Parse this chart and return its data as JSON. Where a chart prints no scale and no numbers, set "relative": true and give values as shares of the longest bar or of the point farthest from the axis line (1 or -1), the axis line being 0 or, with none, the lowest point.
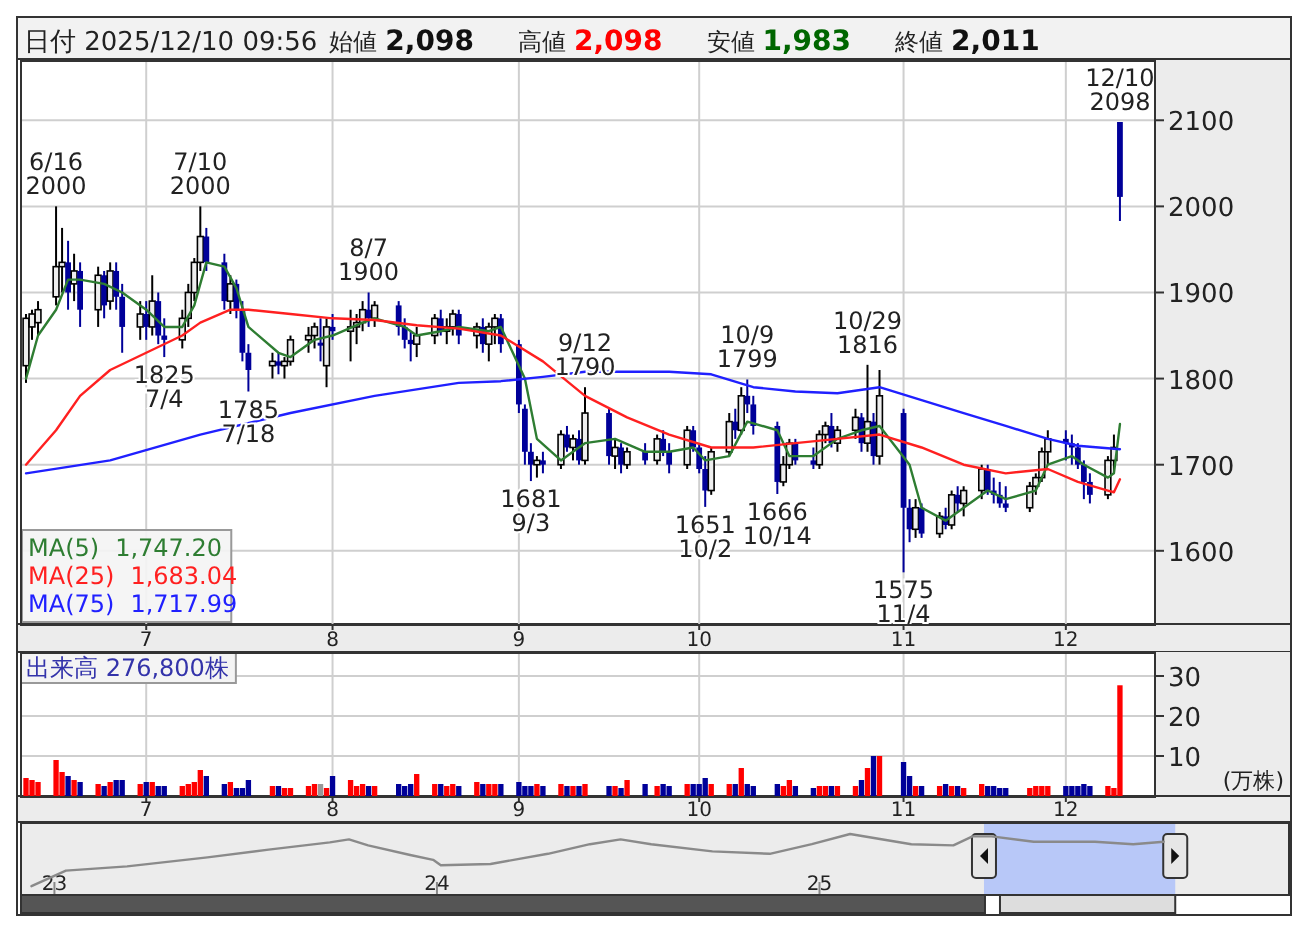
{
  "chart_data": [
    {
      "type": "candlestick",
      "title": "日付 2025/12/10 09:56",
      "annotations": [
        "始値 2,098",
        "高値 2,098",
        "安値 1,983",
        "終値 2,011",
        {
          "text": "6/16\n2000",
          "x": "2025-06-16",
          "y": 2000
        },
        {
          "text": "7/10\n2000",
          "x": "2025-07-10",
          "y": 2000
        },
        {
          "text": "8/7\n1900",
          "x": "2025-08-07",
          "y": 1900
        },
        {
          "text": "9/12\n1790",
          "x": "2025-09-12",
          "y": 1790
        },
        {
          "text": "10/9\n1799",
          "x": "2025-10-09",
          "y": 1799
        },
        {
          "text": "10/29\n1816",
          "x": "2025-10-29",
          "y": 1816
        },
        {
          "text": "12/10\n2098",
          "x": "2025-12-10",
          "y": 2098
        },
        {
          "text": "1825\n7/4",
          "x": "2025-07-04",
          "y": 1825
        },
        {
          "text": "1785\n7/18",
          "x": "2025-07-18",
          "y": 1785
        },
        {
          "text": "1681\n9/3",
          "x": "2025-09-03",
          "y": 1681
        },
        {
          "text": "1651\n10/2",
          "x": "2025-10-02",
          "y": 1651
        },
        {
          "text": "1666\n10/14",
          "x": "2025-10-14",
          "y": 1666
        },
        {
          "text": "1575\n11/4",
          "x": "2025-11-04",
          "y": 1575
        }
      ],
      "x": [
        "2025-06-11",
        "2025-06-12",
        "2025-06-13",
        "2025-06-16",
        "2025-06-17",
        "2025-06-18",
        "2025-06-19",
        "2025-06-20",
        "2025-06-23",
        "2025-06-24",
        "2025-06-25",
        "2025-06-26",
        "2025-06-27",
        "2025-06-30",
        "2025-07-01",
        "2025-07-02",
        "2025-07-03",
        "2025-07-04",
        "2025-07-07",
        "2025-07-08",
        "2025-07-09",
        "2025-07-10",
        "2025-07-11",
        "2025-07-14",
        "2025-07-15",
        "2025-07-16",
        "2025-07-17",
        "2025-07-18",
        "2025-07-22",
        "2025-07-23",
        "2025-07-24",
        "2025-07-25",
        "2025-07-28",
        "2025-07-29",
        "2025-07-30",
        "2025-07-31",
        "2025-08-01",
        "2025-08-04",
        "2025-08-05",
        "2025-08-06",
        "2025-08-07",
        "2025-08-08",
        "2025-08-12",
        "2025-08-13",
        "2025-08-14",
        "2025-08-15",
        "2025-08-18",
        "2025-08-19",
        "2025-08-20",
        "2025-08-21",
        "2025-08-22",
        "2025-08-25",
        "2025-08-26",
        "2025-08-27",
        "2025-08-28",
        "2025-08-29",
        "2025-09-01",
        "2025-09-02",
        "2025-09-03",
        "2025-09-04",
        "2025-09-05",
        "2025-09-08",
        "2025-09-09",
        "2025-09-10",
        "2025-09-11",
        "2025-09-12",
        "2025-09-16",
        "2025-09-17",
        "2025-09-18",
        "2025-09-19",
        "2025-09-22",
        "2025-09-24",
        "2025-09-25",
        "2025-09-26",
        "2025-09-29",
        "2025-09-30",
        "2025-10-01",
        "2025-10-02",
        "2025-10-03",
        "2025-10-06",
        "2025-10-07",
        "2025-10-08",
        "2025-10-09",
        "2025-10-10",
        "2025-10-14",
        "2025-10-15",
        "2025-10-16",
        "2025-10-17",
        "2025-10-20",
        "2025-10-21",
        "2025-10-22",
        "2025-10-23",
        "2025-10-24",
        "2025-10-27",
        "2025-10-28",
        "2025-10-29",
        "2025-10-30",
        "2025-10-31",
        "2025-11-04",
        "2025-11-05",
        "2025-11-06",
        "2025-11-07",
        "2025-11-10",
        "2025-11-11",
        "2025-11-12",
        "2025-11-13",
        "2025-11-14",
        "2025-11-17",
        "2025-11-18",
        "2025-11-19",
        "2025-11-20",
        "2025-11-21",
        "2025-11-25",
        "2025-11-26",
        "2025-11-27",
        "2025-11-28",
        "2025-12-01",
        "2025-12-02",
        "2025-12-03",
        "2025-12-04",
        "2025-12-05",
        "2025-12-08",
        "2025-12-09",
        "2025-12-10"
      ],
      "ohlc": [
        [
          1815,
          1875,
          1795,
          1870
        ],
        [
          1860,
          1880,
          1845,
          1875
        ],
        [
          1865,
          1890,
          1850,
          1880
        ],
        [
          1895,
          2000,
          1885,
          1930
        ],
        [
          1930,
          1975,
          1900,
          1935
        ],
        [
          1935,
          1960,
          1880,
          1900
        ],
        [
          1910,
          1945,
          1890,
          1925
        ],
        [
          1925,
          1935,
          1860,
          1880
        ],
        [
          1880,
          1930,
          1860,
          1920
        ],
        [
          1920,
          1925,
          1870,
          1885
        ],
        [
          1890,
          1935,
          1880,
          1925
        ],
        [
          1925,
          1935,
          1880,
          1895
        ],
        [
          1895,
          1910,
          1830,
          1860
        ],
        [
          1860,
          1890,
          1845,
          1875
        ],
        [
          1875,
          1890,
          1845,
          1860
        ],
        [
          1860,
          1920,
          1850,
          1890
        ],
        [
          1890,
          1900,
          1840,
          1850
        ],
        [
          1850,
          1870,
          1825,
          1845
        ],
        [
          1845,
          1880,
          1835,
          1870
        ],
        [
          1870,
          1910,
          1860,
          1900
        ],
        [
          1900,
          1940,
          1890,
          1935
        ],
        [
          1935,
          2000,
          1925,
          1965
        ],
        [
          1965,
          1975,
          1925,
          1935
        ],
        [
          1935,
          1945,
          1880,
          1890
        ],
        [
          1890,
          1920,
          1875,
          1910
        ],
        [
          1910,
          1915,
          1870,
          1880
        ],
        [
          1880,
          1890,
          1820,
          1830
        ],
        [
          1830,
          1840,
          1785,
          1810
        ],
        [
          1815,
          1830,
          1800,
          1820
        ],
        [
          1820,
          1830,
          1805,
          1815
        ],
        [
          1815,
          1825,
          1800,
          1820
        ],
        [
          1820,
          1850,
          1815,
          1845
        ],
        [
          1845,
          1860,
          1830,
          1850
        ],
        [
          1850,
          1865,
          1835,
          1860
        ],
        [
          1840,
          1870,
          1820,
          1840
        ],
        [
          1815,
          1870,
          1790,
          1860
        ],
        [
          1860,
          1875,
          1845,
          1855
        ],
        [
          1855,
          1880,
          1820,
          1860
        ],
        [
          1860,
          1875,
          1840,
          1865
        ],
        [
          1865,
          1890,
          1855,
          1880
        ],
        [
          1880,
          1900,
          1860,
          1870
        ],
        [
          1870,
          1890,
          1860,
          1885
        ],
        [
          1885,
          1890,
          1850,
          1860
        ],
        [
          1860,
          1870,
          1835,
          1845
        ],
        [
          1845,
          1855,
          1820,
          1840
        ],
        [
          1840,
          1860,
          1825,
          1850
        ],
        [
          1850,
          1875,
          1840,
          1870
        ],
        [
          1870,
          1880,
          1850,
          1855
        ],
        [
          1855,
          1870,
          1840,
          1860
        ],
        [
          1860,
          1880,
          1850,
          1875
        ],
        [
          1875,
          1880,
          1840,
          1850
        ],
        [
          1850,
          1865,
          1835,
          1860
        ],
        [
          1860,
          1870,
          1830,
          1840
        ],
        [
          1840,
          1865,
          1820,
          1860
        ],
        [
          1860,
          1875,
          1840,
          1870
        ],
        [
          1870,
          1875,
          1830,
          1840
        ],
        [
          1840,
          1845,
          1760,
          1770
        ],
        [
          1765,
          1770,
          1700,
          1715
        ],
        [
          1715,
          1725,
          1681,
          1700
        ],
        [
          1700,
          1710,
          1685,
          1705
        ],
        [
          1705,
          1715,
          1690,
          1700
        ],
        [
          1700,
          1740,
          1695,
          1735
        ],
        [
          1735,
          1745,
          1715,
          1720
        ],
        [
          1720,
          1735,
          1705,
          1730
        ],
        [
          1730,
          1740,
          1700,
          1705
        ],
        [
          1705,
          1790,
          1700,
          1760
        ],
        [
          1760,
          1765,
          1700,
          1710
        ],
        [
          1710,
          1730,
          1695,
          1720
        ],
        [
          1720,
          1725,
          1690,
          1700
        ],
        [
          1700,
          1720,
          1695,
          1715
        ],
        [
          1715,
          1725,
          1700,
          1705
        ],
        [
          1705,
          1735,
          1700,
          1730
        ],
        [
          1730,
          1740,
          1710,
          1715
        ],
        [
          1715,
          1725,
          1690,
          1700
        ],
        [
          1700,
          1745,
          1695,
          1740
        ],
        [
          1740,
          1745,
          1715,
          1720
        ],
        [
          1720,
          1725,
          1690,
          1695
        ],
        [
          1695,
          1710,
          1651,
          1670
        ],
        [
          1670,
          1720,
          1665,
          1715
        ],
        [
          1715,
          1760,
          1710,
          1750
        ],
        [
          1750,
          1765,
          1730,
          1740
        ],
        [
          1740,
          1790,
          1735,
          1780
        ],
        [
          1780,
          1799,
          1760,
          1770
        ],
        [
          1770,
          1780,
          1735,
          1745
        ],
        [
          1745,
          1750,
          1666,
          1680
        ],
        [
          1680,
          1710,
          1675,
          1700
        ],
        [
          1700,
          1730,
          1695,
          1725
        ],
        [
          1725,
          1730,
          1700,
          1705
        ],
        [
          1705,
          1720,
          1695,
          1700
        ],
        [
          1700,
          1740,
          1695,
          1735
        ],
        [
          1735,
          1750,
          1725,
          1745
        ],
        [
          1745,
          1760,
          1720,
          1725
        ],
        [
          1725,
          1745,
          1715,
          1740
        ],
        [
          1740,
          1765,
          1730,
          1755
        ],
        [
          1755,
          1760,
          1715,
          1725
        ],
        [
          1725,
          1816,
          1715,
          1750
        ],
        [
          1750,
          1760,
          1700,
          1710
        ],
        [
          1710,
          1810,
          1700,
          1780
        ],
        [
          1760,
          1765,
          1575,
          1650
        ],
        [
          1650,
          1660,
          1610,
          1625
        ],
        [
          1625,
          1660,
          1615,
          1650
        ],
        [
          1650,
          1655,
          1615,
          1620
        ],
        [
          1620,
          1645,
          1615,
          1640
        ],
        [
          1640,
          1650,
          1625,
          1630
        ],
        [
          1630,
          1670,
          1625,
          1665
        ],
        [
          1665,
          1675,
          1645,
          1655
        ],
        [
          1655,
          1675,
          1640,
          1670
        ],
        [
          1670,
          1700,
          1660,
          1695
        ],
        [
          1695,
          1700,
          1665,
          1670
        ],
        [
          1670,
          1685,
          1655,
          1665
        ],
        [
          1665,
          1680,
          1650,
          1655
        ],
        [
          1655,
          1675,
          1645,
          1650
        ],
        [
          1650,
          1680,
          1645,
          1675
        ],
        [
          1675,
          1690,
          1665,
          1685
        ],
        [
          1685,
          1720,
          1680,
          1715
        ],
        [
          1715,
          1740,
          1700,
          1730
        ],
        [
          1730,
          1740,
          1705,
          1725
        ],
        [
          1725,
          1735,
          1700,
          1720
        ],
        [
          1720,
          1725,
          1695,
          1700
        ],
        [
          1700,
          1705,
          1660,
          1680
        ],
        [
          1680,
          1690,
          1655,
          1665
        ],
        [
          1665,
          1710,
          1660,
          1705
        ],
        [
          1705,
          1735,
          1690,
          1720
        ],
        [
          2098,
          2098,
          1983,
          2011
        ]
      ],
      "series": [
        {
          "type": "line",
          "name": "MA(5)  1,747.20",
          "color": "#2e7d32",
          "x": [
            "2025-06-11",
            "2025-06-13",
            "2025-06-16",
            "2025-06-18",
            "2025-06-20",
            "2025-06-24",
            "2025-06-27",
            "2025-07-01",
            "2025-07-04",
            "2025-07-07",
            "2025-07-09",
            "2025-07-11",
            "2025-07-14",
            "2025-07-16",
            "2025-07-18",
            "2025-07-23",
            "2025-07-25",
            "2025-07-29",
            "2025-08-01",
            "2025-08-06",
            "2025-08-08",
            "2025-08-13",
            "2025-08-15",
            "2025-08-19",
            "2025-08-22",
            "2025-08-27",
            "2025-08-29",
            "2025-09-02",
            "2025-09-04",
            "2025-09-08",
            "2025-09-10",
            "2025-09-12",
            "2025-09-17",
            "2025-09-22",
            "2025-09-26",
            "2025-09-30",
            "2025-10-02",
            "2025-10-06",
            "2025-10-09",
            "2025-10-14",
            "2025-10-16",
            "2025-10-20",
            "2025-10-24",
            "2025-10-28",
            "2025-10-31",
            "2025-11-05",
            "2025-11-07",
            "2025-11-11",
            "2025-11-14",
            "2025-11-18",
            "2025-11-21",
            "2025-11-26",
            "2025-11-28",
            "2025-12-02",
            "2025-12-04",
            "2025-12-08",
            "2025-12-09",
            "2025-12-10"
          ],
          "values": [
            1800,
            1850,
            1880,
            1915,
            1915,
            1910,
            1900,
            1880,
            1860,
            1860,
            1885,
            1935,
            1930,
            1905,
            1860,
            1830,
            1825,
            1845,
            1850,
            1865,
            1870,
            1860,
            1850,
            1855,
            1860,
            1855,
            1860,
            1800,
            1730,
            1705,
            1715,
            1725,
            1730,
            1715,
            1715,
            1720,
            1705,
            1710,
            1750,
            1740,
            1710,
            1710,
            1730,
            1740,
            1745,
            1700,
            1650,
            1635,
            1650,
            1670,
            1660,
            1670,
            1700,
            1710,
            1700,
            1685,
            1690,
            1747.2
          ]
        },
        {
          "type": "line",
          "name": "MA(25)  1,683.04",
          "color": "#ff2020",
          "x": [
            "2025-06-11",
            "2025-06-16",
            "2025-06-20",
            "2025-06-25",
            "2025-07-01",
            "2025-07-07",
            "2025-07-10",
            "2025-07-15",
            "2025-07-18",
            "2025-07-25",
            "2025-08-01",
            "2025-08-08",
            "2025-08-15",
            "2025-08-22",
            "2025-08-29",
            "2025-09-05",
            "2025-09-12",
            "2025-09-19",
            "2025-09-26",
            "2025-10-03",
            "2025-10-10",
            "2025-10-17",
            "2025-10-24",
            "2025-10-31",
            "2025-11-07",
            "2025-11-14",
            "2025-11-21",
            "2025-11-28",
            "2025-12-03",
            "2025-12-08",
            "2025-12-09",
            "2025-12-10"
          ],
          "values": [
            1700,
            1740,
            1780,
            1810,
            1830,
            1850,
            1865,
            1880,
            1880,
            1875,
            1870,
            1868,
            1862,
            1858,
            1850,
            1820,
            1780,
            1755,
            1735,
            1720,
            1720,
            1725,
            1730,
            1735,
            1720,
            1700,
            1690,
            1695,
            1680,
            1670,
            1668,
            1683.04
          ]
        },
        {
          "type": "line",
          "name": "MA(75)  1,717.99",
          "color": "#2020ff",
          "x": [
            "2025-06-11",
            "2025-06-25",
            "2025-07-10",
            "2025-07-25",
            "2025-08-08",
            "2025-08-22",
            "2025-08-29",
            "2025-09-05",
            "2025-09-12",
            "2025-09-26",
            "2025-10-03",
            "2025-10-10",
            "2025-10-17",
            "2025-10-24",
            "2025-10-31",
            "2025-11-07",
            "2025-11-14",
            "2025-11-21",
            "2025-11-28",
            "2025-12-03",
            "2025-12-10"
          ],
          "values": [
            1690,
            1705,
            1735,
            1760,
            1780,
            1795,
            1797,
            1802,
            1808,
            1808,
            1805,
            1790,
            1785,
            1783,
            1790,
            1775,
            1760,
            1745,
            1730,
            1722,
            1717.99
          ]
        }
      ],
      "xlim": [
        "2025-06-10",
        "2025-12-16"
      ],
      "xticks": [
        {
          "value": "2025-07-01",
          "label": "7"
        },
        {
          "value": "2025-08-01",
          "label": "8"
        },
        {
          "value": "2025-09-01",
          "label": "9"
        },
        {
          "value": "2025-10-01",
          "label": "10"
        },
        {
          "value": "2025-11-04",
          "label": "11"
        },
        {
          "value": "2025-12-01",
          "label": "12"
        }
      ],
      "ylim": [
        1515,
        2170
      ],
      "yticks": [
        1600,
        1700,
        1800,
        1900,
        2000,
        2100
      ],
      "grid": true,
      "legend": "bottom left"
    },
    {
      "type": "bar",
      "title": "出来高  276,800株",
      "ylabel": "(万株)",
      "x": [
        "2025-06-11",
        "2025-06-12",
        "2025-06-13",
        "2025-06-16",
        "2025-06-17",
        "2025-06-18",
        "2025-06-19",
        "2025-06-20",
        "2025-06-23",
        "2025-06-24",
        "2025-06-25",
        "2025-06-26",
        "2025-06-27",
        "2025-06-30",
        "2025-07-01",
        "2025-07-02",
        "2025-07-03",
        "2025-07-04",
        "2025-07-07",
        "2025-07-08",
        "2025-07-09",
        "2025-07-10",
        "2025-07-11",
        "2025-07-14",
        "2025-07-15",
        "2025-07-16",
        "2025-07-17",
        "2025-07-18",
        "2025-07-22",
        "2025-07-23",
        "2025-07-24",
        "2025-07-25",
        "2025-07-28",
        "2025-07-29",
        "2025-07-30",
        "2025-07-31",
        "2025-08-01",
        "2025-08-04",
        "2025-08-05",
        "2025-08-06",
        "2025-08-07",
        "2025-08-08",
        "2025-08-12",
        "2025-08-13",
        "2025-08-14",
        "2025-08-15",
        "2025-08-18",
        "2025-08-19",
        "2025-08-20",
        "2025-08-21",
        "2025-08-22",
        "2025-08-25",
        "2025-08-26",
        "2025-08-27",
        "2025-08-28",
        "2025-08-29",
        "2025-09-01",
        "2025-09-02",
        "2025-09-03",
        "2025-09-04",
        "2025-09-05",
        "2025-09-08",
        "2025-09-09",
        "2025-09-10",
        "2025-09-11",
        "2025-09-12",
        "2025-09-16",
        "2025-09-17",
        "2025-09-18",
        "2025-09-19",
        "2025-09-22",
        "2025-09-24",
        "2025-09-25",
        "2025-09-26",
        "2025-09-29",
        "2025-09-30",
        "2025-10-01",
        "2025-10-02",
        "2025-10-03",
        "2025-10-06",
        "2025-10-07",
        "2025-10-08",
        "2025-10-09",
        "2025-10-10",
        "2025-10-14",
        "2025-10-15",
        "2025-10-16",
        "2025-10-17",
        "2025-10-20",
        "2025-10-21",
        "2025-10-22",
        "2025-10-23",
        "2025-10-24",
        "2025-10-27",
        "2025-10-28",
        "2025-10-29",
        "2025-10-30",
        "2025-10-31",
        "2025-11-04",
        "2025-11-05",
        "2025-11-06",
        "2025-11-07",
        "2025-11-10",
        "2025-11-11",
        "2025-11-12",
        "2025-11-13",
        "2025-11-14",
        "2025-11-17",
        "2025-11-18",
        "2025-11-19",
        "2025-11-20",
        "2025-11-21",
        "2025-11-25",
        "2025-11-26",
        "2025-11-27",
        "2025-11-28",
        "2025-12-01",
        "2025-12-02",
        "2025-12-03",
        "2025-12-04",
        "2025-12-05",
        "2025-12-08",
        "2025-12-09",
        "2025-12-10"
      ],
      "values": [
        4.5,
        4,
        3.5,
        9,
        6,
        5,
        4,
        3.5,
        3,
        2.5,
        3.5,
        4,
        4,
        3,
        3.5,
        3.5,
        2.5,
        2.5,
        2.5,
        3,
        3.5,
        6.5,
        5,
        3,
        3.5,
        2,
        2,
        4,
        2.5,
        2.5,
        2,
        2,
        2.5,
        3,
        3,
        2,
        5,
        4,
        2.5,
        3,
        2.5,
        2.5,
        3,
        2.5,
        3,
        5.5,
        3,
        3,
        2.5,
        3,
        2.5,
        3.5,
        3,
        3,
        3,
        3,
        3.5,
        2.5,
        2.5,
        3,
        2.5,
        3,
        2.5,
        2.5,
        2.5,
        3,
        2.5,
        2.5,
        2,
        4,
        3,
        2.5,
        3,
        2.5,
        3,
        3,
        3,
        4.5,
        3,
        3,
        3,
        7,
        3,
        2.5,
        3,
        2.5,
        4,
        2.5,
        2,
        2.5,
        2.5,
        2.5,
        2.5,
        2.5,
        4,
        7,
        10,
        10,
        8.5,
        5,
        2.5,
        2.5,
        2.5,
        3,
        2.5,
        2.5,
        2,
        3,
        2.5,
        2.5,
        2,
        2,
        2,
        2.5,
        2.5,
        2.5,
        2.5,
        2.5,
        2.5,
        3,
        2.5,
        2.5,
        2,
        27.68
      ],
      "colors": [
        "#ff0000",
        "#ff0000",
        "#ff0000",
        "#ff0000",
        "#ff0000",
        "#000099",
        "#ff0000",
        "#000099",
        "#ff0000",
        "#000099",
        "#ff0000",
        "#000099",
        "#000099",
        "#ff0000",
        "#000099",
        "#ff0000",
        "#000099",
        "#000099",
        "#ff0000",
        "#ff0000",
        "#ff0000",
        "#ff0000",
        "#000099",
        "#000099",
        "#ff0000",
        "#000099",
        "#000099",
        "#000099",
        "#ff0000",
        "#000099",
        "#ff0000",
        "#ff0000",
        "#ff0000",
        "#ff0000",
        "#999999",
        "#ff0000",
        "#000099",
        "#ff0000",
        "#ff0000",
        "#ff0000",
        "#000099",
        "#ff0000",
        "#000099",
        "#000099",
        "#000099",
        "#ff0000",
        "#ff0000",
        "#000099",
        "#ff0000",
        "#ff0000",
        "#000099",
        "#ff0000",
        "#000099",
        "#ff0000",
        "#ff0000",
        "#000099",
        "#000099",
        "#000099",
        "#000099",
        "#ff0000",
        "#000099",
        "#ff0000",
        "#000099",
        "#ff0000",
        "#000099",
        "#ff0000",
        "#000099",
        "#ff0000",
        "#000099",
        "#ff0000",
        "#000099",
        "#ff0000",
        "#000099",
        "#000099",
        "#ff0000",
        "#000099",
        "#000099",
        "#000099",
        "#ff0000",
        "#ff0000",
        "#000099",
        "#ff0000",
        "#000099",
        "#000099",
        "#000099",
        "#ff0000",
        "#ff0000",
        "#000099",
        "#000099",
        "#ff0000",
        "#ff0000",
        "#000099",
        "#ff0000",
        "#ff0000",
        "#000099",
        "#ff0000",
        "#000099",
        "#ff0000",
        "#000099",
        "#000099",
        "#ff0000",
        "#000099",
        "#ff0000",
        "#000099",
        "#ff0000",
        "#000099",
        "#ff0000",
        "#ff0000",
        "#000099",
        "#000099",
        "#000099",
        "#000099",
        "#ff0000",
        "#ff0000",
        "#ff0000",
        "#ff0000",
        "#000099",
        "#000099",
        "#000099",
        "#000099",
        "#000099",
        "#ff0000",
        "#ff0000",
        "#ff0000"
      ],
      "xlim": [
        "2025-06-10",
        "2025-12-16"
      ],
      "xticks": [
        {
          "value": "2025-07-01",
          "label": "7"
        },
        {
          "value": "2025-08-01",
          "label": "8"
        },
        {
          "value": "2025-09-01",
          "label": "9"
        },
        {
          "value": "2025-10-01",
          "label": "10"
        },
        {
          "value": "2025-11-04",
          "label": "11"
        },
        {
          "value": "2025-12-01",
          "label": "12"
        }
      ],
      "ylim": [
        0,
        36
      ],
      "yticks": [
        10,
        20,
        30
      ],
      "grid": true
    },
    {
      "type": "line",
      "relative": true,
      "series": [
        {
          "color": "#8a8a8a",
          "x": [
            2022.94,
            2023.03,
            2023.19,
            2023.4,
            2023.56,
            2023.72,
            2023.77,
            2023.82,
            2023.93,
            2023.99,
            2024.01,
            2024.14,
            2024.29,
            2024.4,
            2024.48,
            2024.56,
            2024.72,
            2024.87,
            2024.98,
            2025.08,
            2025.24,
            2025.35,
            2025.4,
            2025.45,
            2025.56,
            2025.72,
            2025.82,
            2025.9
          ],
          "values": [
            0.13,
            0.39,
            0.46,
            0.61,
            0.74,
            0.86,
            0.91,
            0.81,
            0.65,
            0.57,
            0.48,
            0.5,
            0.67,
            0.83,
            0.91,
            0.83,
            0.71,
            0.67,
            0.83,
            1,
            0.83,
            0.81,
            0.96,
            0.96,
            0.87,
            0.87,
            0.83,
            0.87
          ]
        }
      ],
      "xlim": [
        2022.91,
        2026.23
      ],
      "xticks": [
        {
          "value": 2023,
          "label": "23"
        },
        {
          "value": 2024,
          "label": "24"
        },
        {
          "value": 2025,
          "label": "25"
        }
      ],
      "bands": [
        {
          "axis": "x",
          "from": 2025.43,
          "to": 2025.93,
          "color": "#b8c8f8"
        }
      ]
    }
  ]
}
